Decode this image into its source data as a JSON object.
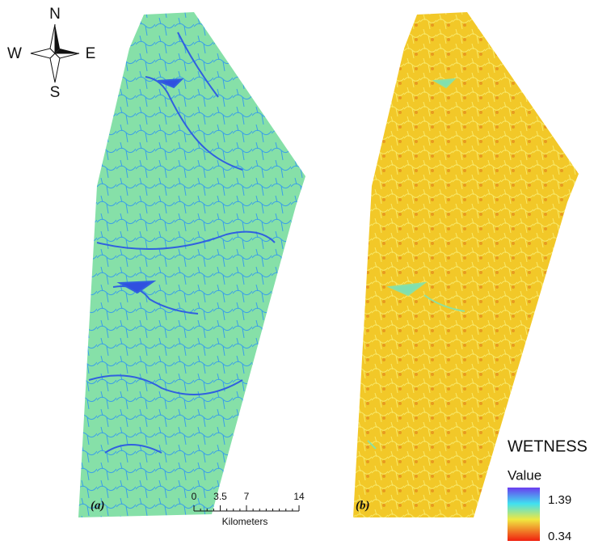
{
  "compass": {
    "north": "N",
    "south": "S",
    "west": "W",
    "east": "E"
  },
  "panels": [
    {
      "label": "(a)"
    },
    {
      "label": "(b)"
    }
  ],
  "scale_bar": {
    "ticks": [
      0,
      3.5,
      7,
      14
    ],
    "unit": "Kilometers"
  },
  "legend": {
    "title": "WETNESS",
    "subtitle": "Value",
    "max": 1.39,
    "min": 0.34
  }
}
